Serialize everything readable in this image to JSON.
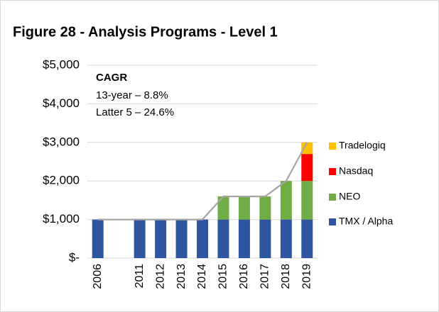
{
  "chart_data": {
    "type": "bar",
    "stacked": true,
    "title": "Figure 28 - Analysis Programs - Level 1",
    "annotations": [
      "CAGR",
      "13-year – 8.8%",
      "Latter 5 – 24.6%"
    ],
    "categories": [
      "2006",
      null,
      "2011",
      "2012",
      "2013",
      "2014",
      "2015",
      "2016",
      "2017",
      "2018",
      "2019"
    ],
    "series": [
      {
        "name": "TMX / Alpha",
        "color": "#2f55a0",
        "values": [
          1000,
          null,
          1000,
          1000,
          1000,
          1000,
          1000,
          1000,
          1000,
          1000,
          1000
        ]
      },
      {
        "name": "NEO",
        "color": "#70ad47",
        "values": [
          null,
          null,
          null,
          null,
          null,
          null,
          600,
          600,
          600,
          1000,
          1000
        ]
      },
      {
        "name": "Nasdaq",
        "color": "#ff0000",
        "values": [
          null,
          null,
          null,
          null,
          null,
          null,
          null,
          null,
          null,
          null,
          700
        ]
      },
      {
        "name": "Tradelogiq",
        "color": "#ffc000",
        "values": [
          null,
          null,
          null,
          null,
          null,
          null,
          null,
          null,
          null,
          null,
          300
        ]
      }
    ],
    "line": {
      "color": "#a6a6a6",
      "values": [
        1000,
        1000,
        1000,
        1000,
        1000,
        1000,
        1600,
        1600,
        1600,
        2000,
        3000
      ]
    },
    "ylim": [
      0,
      5000
    ],
    "yticks": [
      {
        "value": 0,
        "label": "$-"
      },
      {
        "value": 1000,
        "label": "$1,000"
      },
      {
        "value": 2000,
        "label": "$2,000"
      },
      {
        "value": 3000,
        "label": "$3,000"
      },
      {
        "value": 4000,
        "label": "$4,000"
      },
      {
        "value": 5000,
        "label": "$5,000"
      }
    ],
    "grid": true,
    "legend": "right"
  }
}
